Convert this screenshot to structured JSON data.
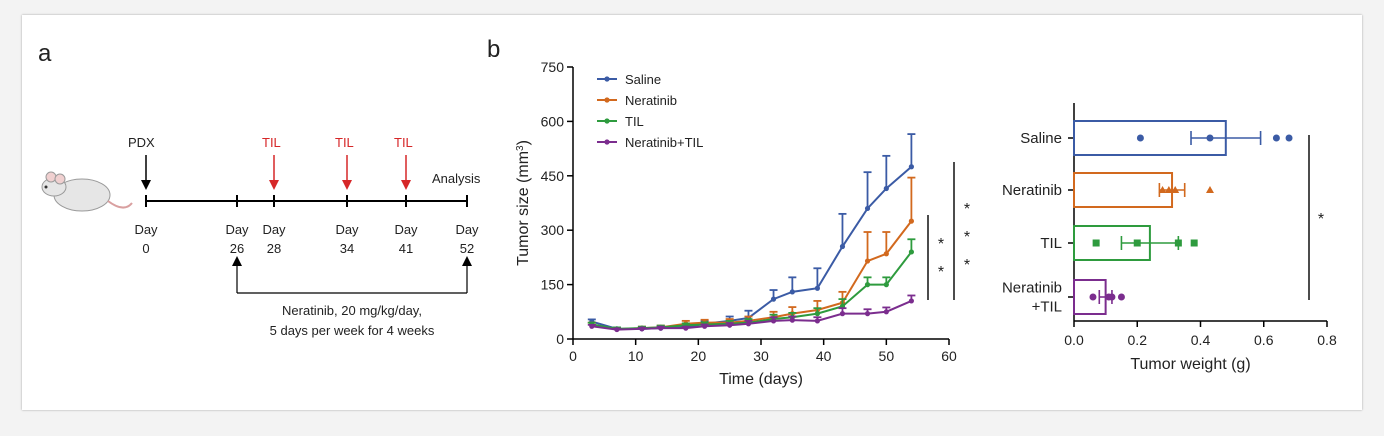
{
  "panel_a": {
    "letter": "a",
    "pdx_label": "PDX",
    "til_labels": [
      "TIL",
      "TIL",
      "TIL"
    ],
    "analysis_label": "Analysis",
    "day_word": "Day",
    "day_numbers": [
      "0",
      "26",
      "28",
      "34",
      "41",
      "52"
    ],
    "treatment_line1": "Neratinib, 20 mg/kg/day,",
    "treatment_line2": "5 days per week for 4 weeks",
    "til_color": "#d62728"
  },
  "panel_b_letter": "b",
  "chart_data": [
    {
      "type": "line",
      "xlabel": "Time (days)",
      "ylabel": "Tumor size (mm",
      "ylabel_sup": "3",
      "ylabel_close": ")",
      "xlim": [
        0,
        60
      ],
      "ylim": [
        0,
        750
      ],
      "xticks": [
        "0",
        "10",
        "20",
        "30",
        "40",
        "50",
        "60"
      ],
      "yticks": [
        "0",
        "150",
        "300",
        "450",
        "600",
        "750"
      ],
      "legend_position": "top-left",
      "x": [
        3,
        7,
        11,
        14,
        18,
        21,
        25,
        28,
        32,
        35,
        39,
        43,
        47,
        50,
        54
      ],
      "series": [
        {
          "name": "Saline",
          "color": "#3b5ba5",
          "values": [
            48,
            28,
            28,
            30,
            32,
            42,
            50,
            58,
            110,
            130,
            140,
            255,
            360,
            415,
            475
          ],
          "errors": [
            6,
            4,
            4,
            5,
            6,
            8,
            12,
            20,
            25,
            40,
            55,
            90,
            100,
            90,
            90
          ]
        },
        {
          "name": "Neratinib",
          "color": "#d2691e",
          "values": [
            40,
            27,
            30,
            32,
            42,
            45,
            45,
            50,
            60,
            70,
            80,
            100,
            215,
            235,
            325
          ],
          "errors": [
            5,
            4,
            4,
            5,
            8,
            8,
            10,
            12,
            15,
            18,
            25,
            30,
            80,
            60,
            120
          ]
        },
        {
          "name": "TIL",
          "color": "#2e9b3e",
          "values": [
            40,
            28,
            30,
            32,
            38,
            40,
            42,
            45,
            55,
            60,
            70,
            90,
            150,
            150,
            240
          ],
          "errors": [
            5,
            4,
            4,
            5,
            5,
            6,
            8,
            10,
            12,
            12,
            15,
            20,
            20,
            20,
            35
          ]
        },
        {
          "name": "Neratinib+TIL",
          "color": "#7b2d8e",
          "values": [
            35,
            26,
            28,
            30,
            30,
            35,
            38,
            42,
            50,
            52,
            50,
            70,
            70,
            75,
            105
          ],
          "errors": [
            4,
            3,
            3,
            4,
            4,
            5,
            6,
            8,
            10,
            10,
            10,
            15,
            12,
            12,
            15
          ]
        }
      ],
      "significance": [
        "*",
        "*",
        "*",
        "*",
        "*"
      ]
    },
    {
      "type": "bar",
      "orientation": "horizontal",
      "xlabel": "Tumor weight (g)",
      "xlim": [
        0,
        0.8
      ],
      "xticks": [
        "0.0",
        "0.2",
        "0.4",
        "0.6",
        "0.8"
      ],
      "categories": [
        "Saline",
        "Neratinib",
        "TIL",
        "Neratinib\n+TIL"
      ],
      "category_lines": [
        [
          "Saline"
        ],
        [
          "Neratinib"
        ],
        [
          "TIL"
        ],
        [
          "Neratinib",
          "+TIL"
        ]
      ],
      "values": [
        0.48,
        0.31,
        0.24,
        0.1
      ],
      "errors": [
        0.11,
        0.04,
        0.09,
        0.02
      ],
      "colors": [
        "#3b5ba5",
        "#d2691e",
        "#2e9b3e",
        "#7b2d8e"
      ],
      "markers": [
        "circle",
        "triangle",
        "square",
        "circle"
      ],
      "points": [
        [
          0.21,
          0.43,
          0.64,
          0.68
        ],
        [
          0.28,
          0.3,
          0.32,
          0.43
        ],
        [
          0.07,
          0.2,
          0.33,
          0.38
        ],
        [
          0.06,
          0.11,
          0.12,
          0.15
        ]
      ],
      "significance": "*"
    }
  ]
}
